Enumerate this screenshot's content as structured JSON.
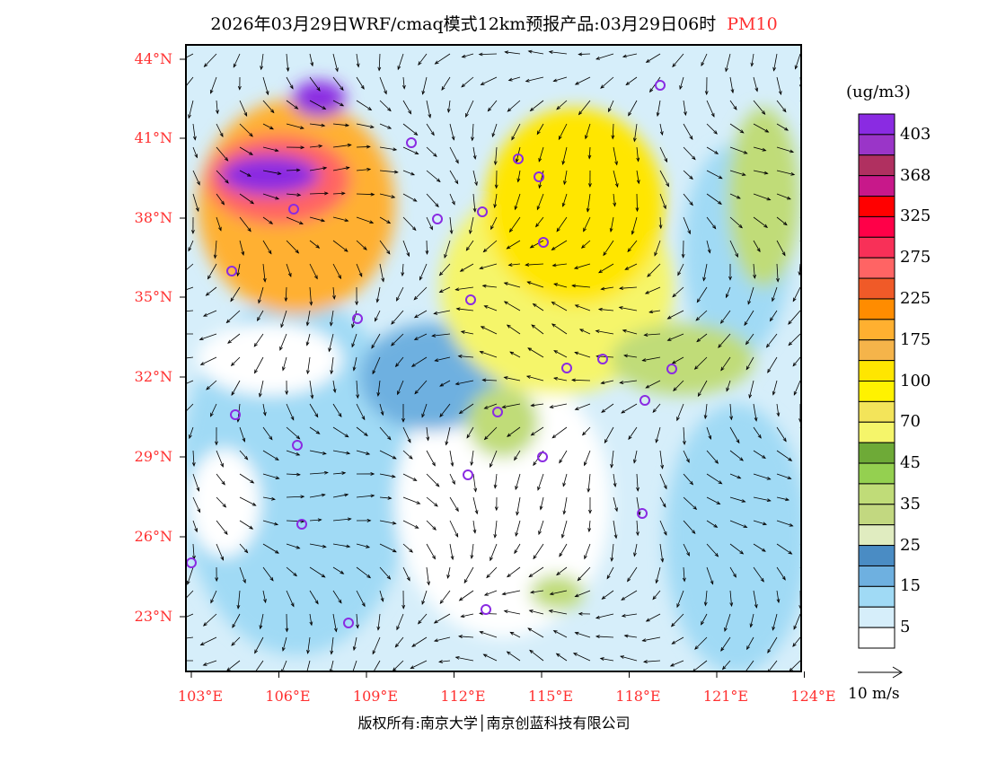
{
  "title": {
    "main": "2026年03月29日WRF/cmaq模式12km预报产品:03月29日06时",
    "species": "PM10"
  },
  "lat_labels": [
    "44°N",
    "41°N",
    "38°N",
    "35°N",
    "32°N",
    "29°N",
    "26°N",
    "23°N"
  ],
  "lon_labels": [
    "103°E",
    "106°E",
    "109°E",
    "112°E",
    "115°E",
    "118°E",
    "121°E",
    "124°E"
  ],
  "legend": {
    "unit": "(ug/m3)",
    "labels": [
      "403",
      "368",
      "325",
      "275",
      "225",
      "175",
      "100",
      "70",
      "45",
      "35",
      "25",
      "15",
      "5"
    ],
    "colors": [
      "#8a2be2",
      "#9a35c8",
      "#b03060",
      "#c8188a",
      "#ff0000",
      "#ff0048",
      "#f83058",
      "#ff6464",
      "#f05a28",
      "#ff8c00",
      "#ffb030",
      "#f5b44a",
      "#ffe600",
      "#fff200",
      "#f3e45a",
      "#f5f56a",
      "#6eaa37",
      "#94d050",
      "#c0dc78",
      "#c2d880",
      "#e0ecc0",
      "#4a8cc4",
      "#6eb0e0",
      "#a0daf5",
      "#d6eefa",
      "#ffffff"
    ]
  },
  "wind_scale": "10 m/s",
  "footer": "版权所有:南京大学│南京创蓝科技有限公司"
}
